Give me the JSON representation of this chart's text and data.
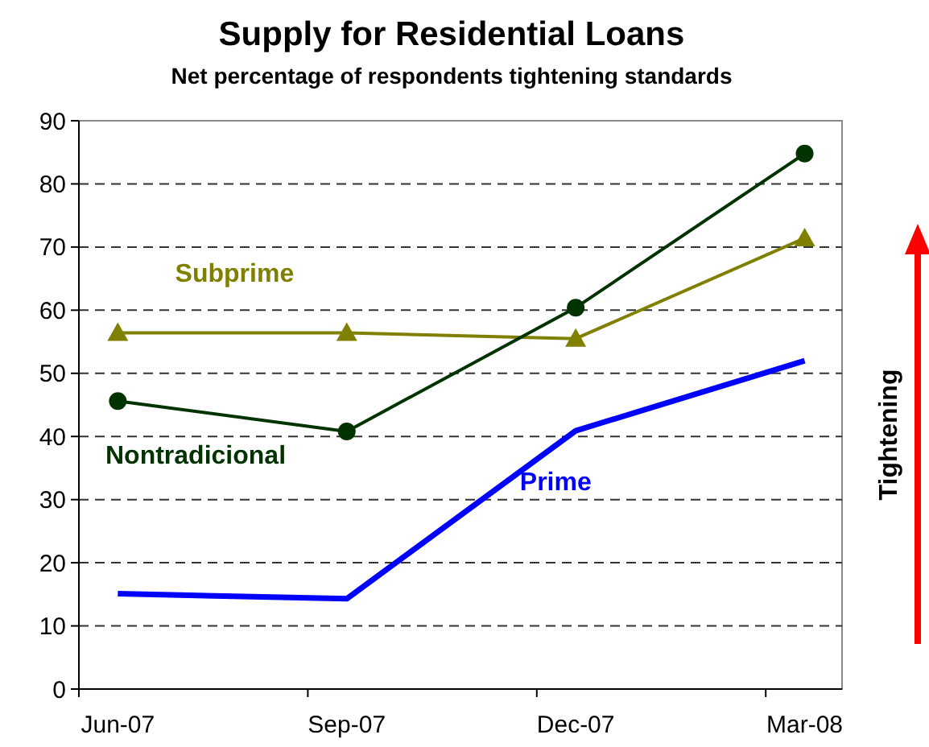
{
  "chart_data": {
    "type": "line",
    "title": "Supply for Residential Loans",
    "subtitle": "Net percentage of respondents tightening standards",
    "categories": [
      "Jun-07",
      "Sep-07",
      "Dec-07",
      "Mar-08"
    ],
    "series": [
      {
        "name": "Subprime",
        "color": "#808000",
        "marker": "triangle",
        "values": [
          56.4,
          56.4,
          55.5,
          71.4
        ]
      },
      {
        "name": "Nontradicional",
        "color": "#003300",
        "marker": "circle",
        "values": [
          45.6,
          40.8,
          60.4,
          84.8
        ]
      },
      {
        "name": "Prime",
        "color": "#0000ff",
        "marker": "none",
        "values": [
          15.1,
          14.3,
          40.9,
          52
        ]
      }
    ],
    "ylim": [
      0,
      90
    ],
    "yticks": [
      0,
      10,
      20,
      30,
      40,
      50,
      60,
      70,
      80,
      90
    ],
    "grid": "y",
    "line_style": "solid",
    "annotations": [
      "Tightening"
    ]
  }
}
